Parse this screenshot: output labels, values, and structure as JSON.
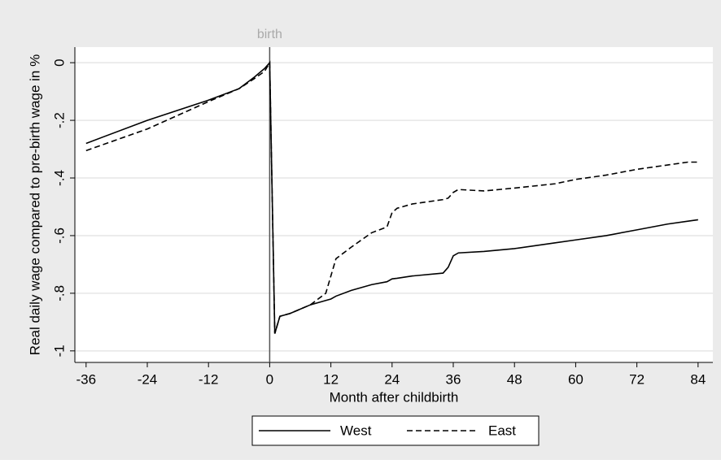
{
  "chart_data": {
    "type": "line",
    "ylabel": "Real daily wage compared to pre-birth wage in %",
    "xlabel": "Month after childbirth",
    "annotations": [
      {
        "text": "birth",
        "x": 0
      }
    ],
    "x": [
      -36,
      -24,
      -12,
      -6,
      -3,
      -1,
      0,
      1,
      2,
      4,
      8,
      11,
      12,
      13,
      16,
      20,
      23,
      24,
      25,
      28,
      34,
      35,
      36,
      37,
      42,
      48,
      56,
      60,
      66,
      72,
      78,
      82,
      84
    ],
    "series": [
      {
        "name": "West",
        "color": "#000000",
        "dash": "solid",
        "values": [
          -0.28,
          -0.2,
          -0.13,
          -0.09,
          -0.05,
          -0.02,
          0,
          -0.94,
          -0.88,
          -0.87,
          -0.84,
          -0.825,
          -0.82,
          -0.81,
          -0.79,
          -0.77,
          -0.76,
          -0.75,
          -0.748,
          -0.74,
          -0.73,
          -0.71,
          -0.67,
          -0.66,
          -0.655,
          -0.645,
          -0.625,
          -0.615,
          -0.6,
          -0.58,
          -0.56,
          -0.55,
          -0.545
        ]
      },
      {
        "name": "East",
        "color": "#000000",
        "dash": "dashed",
        "values": [
          -0.305,
          -0.23,
          -0.135,
          -0.09,
          -0.055,
          -0.03,
          0,
          -0.94,
          -0.88,
          -0.87,
          -0.84,
          -0.8,
          -0.74,
          -0.68,
          -0.64,
          -0.59,
          -0.57,
          -0.52,
          -0.505,
          -0.49,
          -0.475,
          -0.47,
          -0.45,
          -0.44,
          -0.445,
          -0.435,
          -0.42,
          -0.405,
          -0.39,
          -0.37,
          -0.355,
          -0.345,
          -0.345
        ]
      }
    ],
    "xlim": [
      -38.2,
      86.9
    ],
    "ylim": [
      -1.04,
      0.054
    ],
    "xticks": [
      -36,
      -24,
      -12,
      0,
      12,
      24,
      36,
      48,
      60,
      72,
      84
    ],
    "yticks": [
      0,
      {
        "value": -0.2,
        "label": "-.2"
      },
      {
        "value": -0.4,
        "label": "-.4"
      },
      {
        "value": -0.6,
        "label": "-.6"
      },
      {
        "value": -0.8,
        "label": "-.8"
      },
      -1
    ],
    "grid": true,
    "legend": "bottom"
  }
}
